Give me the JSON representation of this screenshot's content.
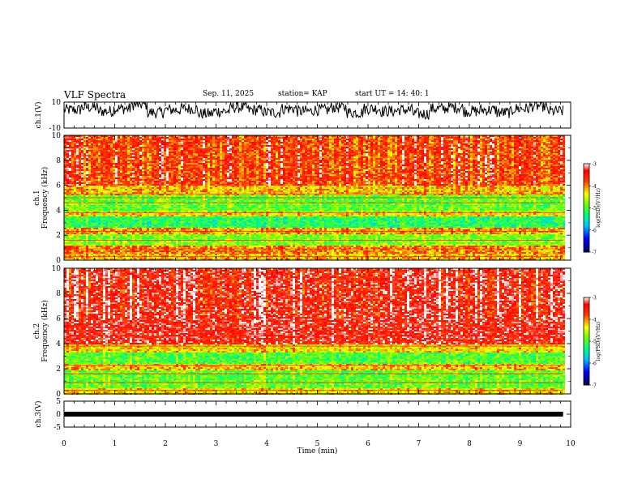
{
  "header": {
    "title": "VLF Spectra",
    "date": "Sep. 11, 2025",
    "station": "station= KAP",
    "start": "start UT =   14: 40: 1"
  },
  "chart_data": [
    {
      "type": "line",
      "panel": "ch1-waveform",
      "ylabel": "ch.1(V)",
      "ylim": [
        -10,
        10
      ],
      "yticks": [
        "10",
        "-10"
      ],
      "xlim": [
        0,
        10
      ],
      "x_end": 9.85,
      "description_mean": 4,
      "series": [
        {
          "values": [
            4,
            6,
            3,
            5,
            8,
            2,
            4,
            5,
            1,
            3,
            6,
            4,
            2,
            5,
            3,
            4,
            6,
            2,
            5,
            3,
            4,
            1,
            5,
            6,
            3,
            4,
            2,
            5,
            7,
            3
          ]
        }
      ]
    },
    {
      "type": "heatmap",
      "panel": "ch1-spectrogram",
      "ylabel": "ch.1 Frequency (kHz)",
      "ylim": [
        0,
        10
      ],
      "yticks": [
        "0",
        "2",
        "4",
        "6",
        "8",
        "10"
      ],
      "xlim": [
        0,
        10
      ],
      "x_end": 9.85,
      "colorbar": {
        "label": "log(PSD)(V²/Hz)",
        "min": -7,
        "max": -3,
        "ticks": [
          "-3",
          "-4",
          "-5",
          "-6",
          "-7"
        ]
      },
      "bands_khz": [
        [
          0,
          0.6,
          -4.2
        ],
        [
          0.6,
          1.2,
          -4.0
        ],
        [
          1.2,
          2.2,
          -4.8
        ],
        [
          2.2,
          2.6,
          -4.1
        ],
        [
          2.6,
          3.6,
          -5.2
        ],
        [
          3.6,
          4.0,
          -4.3
        ],
        [
          4.0,
          5.2,
          -4.9
        ],
        [
          5.2,
          6.0,
          -4.2
        ],
        [
          6.0,
          10,
          -3.7
        ]
      ]
    },
    {
      "type": "heatmap",
      "panel": "ch2-spectrogram",
      "ylabel": "ch.2 Frequency (kHz)",
      "ylim": [
        0,
        10
      ],
      "yticks": [
        "0",
        "2",
        "4",
        "6",
        "8",
        "10"
      ],
      "xlim": [
        0,
        10
      ],
      "x_end": 9.85,
      "colorbar": {
        "label": "log(PSD)(V²/Hz)",
        "min": -7,
        "max": -3,
        "ticks": [
          "-3",
          "-4",
          "-5",
          "-6",
          "-7"
        ]
      },
      "bands_khz": [
        [
          0,
          0.5,
          -4.3
        ],
        [
          0.5,
          2.0,
          -4.9
        ],
        [
          2.0,
          2.4,
          -4.2
        ],
        [
          2.4,
          3.4,
          -5.0
        ],
        [
          3.4,
          4.0,
          -4.3
        ],
        [
          4.0,
          10,
          -3.4
        ]
      ]
    },
    {
      "type": "line",
      "panel": "ch3-waveform",
      "ylabel": "ch.3(V)",
      "xlabel": "Time (min)",
      "ylim": [
        -5,
        5
      ],
      "yticks": [
        "5",
        "0",
        "-5"
      ],
      "xlim": [
        0,
        10
      ],
      "x_end": 9.85,
      "xticks": [
        "0",
        "1",
        "2",
        "3",
        "4",
        "5",
        "6",
        "7",
        "8",
        "9",
        "10"
      ],
      "series": [
        {
          "values": [
            0,
            0
          ]
        }
      ]
    }
  ],
  "colors": {
    "low": "#000080",
    "mid_low": "#00ff00",
    "mid": "#ffff00",
    "high": "#ff0000",
    "top": "#ffffff"
  }
}
